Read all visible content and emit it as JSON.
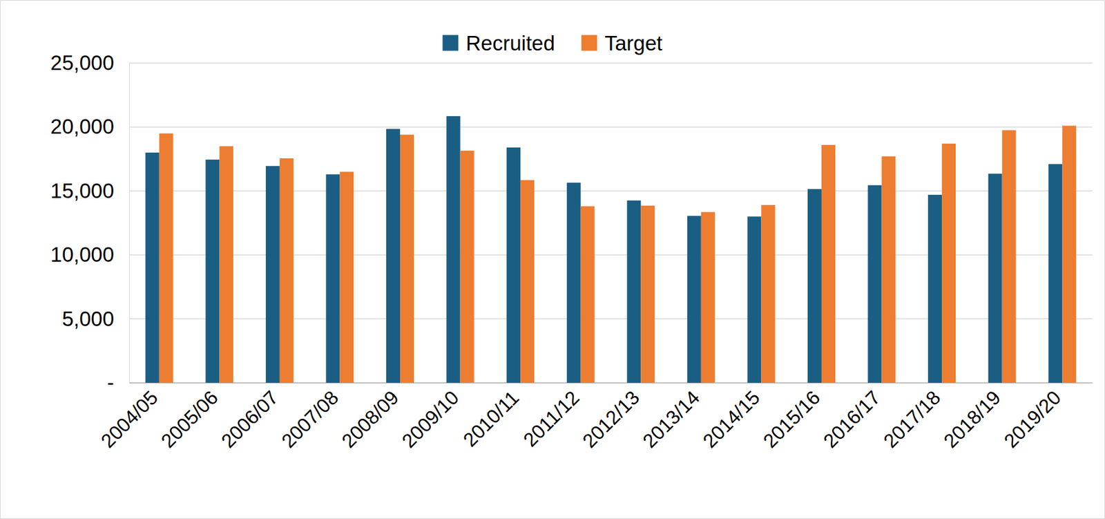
{
  "chart_data": {
    "type": "bar",
    "categories": [
      "2004/05",
      "2005/06",
      "2006/07",
      "2007/08",
      "2008/09",
      "2009/10",
      "2010/11",
      "2011/12",
      "2012/13",
      "2013/14",
      "2014/15",
      "2015/16",
      "2016/17",
      "2017/18",
      "2018/19",
      "2019/20"
    ],
    "series": [
      {
        "name": "Recruited",
        "color": "#1b5e83",
        "values": [
          18000,
          17450,
          16950,
          16300,
          19850,
          20850,
          18400,
          15650,
          14250,
          13050,
          13000,
          15150,
          15450,
          14700,
          16350,
          17100
        ]
      },
      {
        "name": "Target",
        "color": "#ed7d31",
        "values": [
          19500,
          18500,
          17550,
          16500,
          19400,
          18150,
          15850,
          13800,
          13850,
          13350,
          13900,
          18600,
          17700,
          18700,
          19750,
          20100
        ]
      }
    ],
    "ylim": [
      0,
      25000
    ],
    "yticks": [
      {
        "value": 0,
        "label": "-"
      },
      {
        "value": 5000,
        "label": "5,000"
      },
      {
        "value": 10000,
        "label": "10,000"
      },
      {
        "value": 15000,
        "label": "15,000"
      },
      {
        "value": 20000,
        "label": "20,000"
      },
      {
        "value": 25000,
        "label": "25,000"
      }
    ],
    "grid": true,
    "legend": "top"
  }
}
